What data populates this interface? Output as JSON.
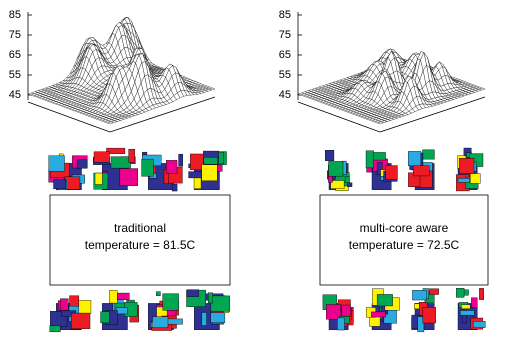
{
  "panels": [
    {
      "zticks": [
        85,
        75,
        65,
        55,
        45
      ],
      "label": "traditional",
      "temperature": "temperature = 81.5C"
    },
    {
      "zticks": [
        85,
        75,
        65,
        55,
        45
      ],
      "label": "multi-core aware",
      "temperature": "temperature = 72.5C"
    }
  ]
}
